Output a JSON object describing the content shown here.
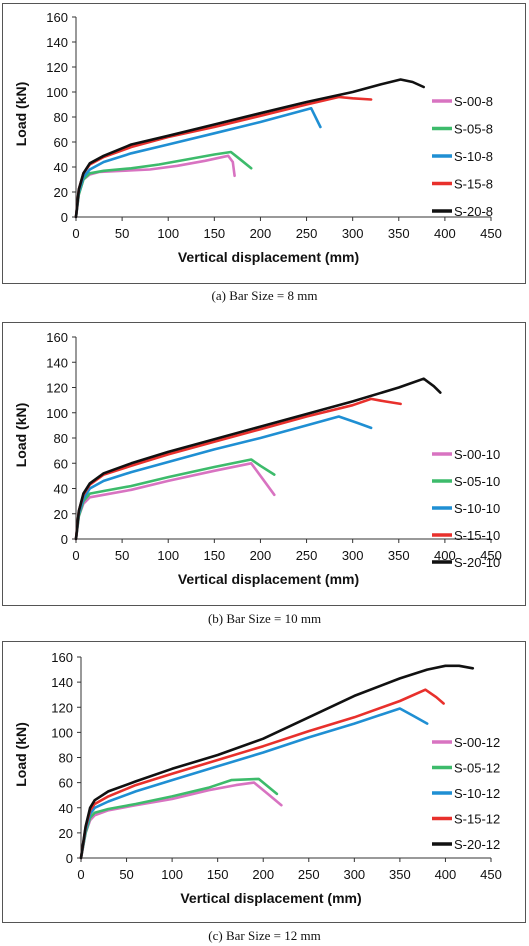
{
  "chart_data": [
    {
      "type": "line",
      "caption": "(a)  Bar Size  = 8 mm",
      "xlabel": "Vertical displacement (mm)",
      "ylabel": "Load (kN)",
      "xlim": [
        0,
        450
      ],
      "ylim": [
        0,
        160
      ],
      "xticks": [
        0,
        50,
        100,
        150,
        200,
        250,
        300,
        350,
        400,
        450
      ],
      "yticks": [
        0,
        20,
        40,
        60,
        80,
        100,
        120,
        140,
        160
      ],
      "grid": false,
      "legend": "right",
      "series": [
        {
          "name": "S-00-8",
          "color": "#d873c1",
          "points": [
            [
              0,
              0
            ],
            [
              3,
              18
            ],
            [
              8,
              30
            ],
            [
              15,
              34
            ],
            [
              25,
              36
            ],
            [
              50,
              37
            ],
            [
              80,
              38
            ],
            [
              110,
              41
            ],
            [
              140,
              45
            ],
            [
              165,
              49
            ],
            [
              170,
              44
            ],
            [
              172,
              33
            ]
          ]
        },
        {
          "name": "S-05-8",
          "color": "#3dbb6b",
          "points": [
            [
              0,
              0
            ],
            [
              3,
              18
            ],
            [
              8,
              30
            ],
            [
              15,
              35
            ],
            [
              30,
              37
            ],
            [
              60,
              39
            ],
            [
              90,
              42
            ],
            [
              120,
              46
            ],
            [
              150,
              50
            ],
            [
              168,
              52
            ],
            [
              180,
              45
            ],
            [
              190,
              39
            ]
          ]
        },
        {
          "name": "S-10-8",
          "color": "#1f8fd3",
          "points": [
            [
              0,
              0
            ],
            [
              3,
              20
            ],
            [
              8,
              32
            ],
            [
              15,
              38
            ],
            [
              30,
              44
            ],
            [
              60,
              51
            ],
            [
              100,
              58
            ],
            [
              150,
              67
            ],
            [
              200,
              76
            ],
            [
              250,
              86
            ],
            [
              255,
              87
            ],
            [
              265,
              72
            ]
          ]
        },
        {
          "name": "S-15-8",
          "color": "#e8302c",
          "points": [
            [
              0,
              0
            ],
            [
              3,
              22
            ],
            [
              8,
              35
            ],
            [
              15,
              42
            ],
            [
              30,
              48
            ],
            [
              60,
              56
            ],
            [
              100,
              64
            ],
            [
              150,
              72
            ],
            [
              200,
              81
            ],
            [
              250,
              90
            ],
            [
              285,
              96
            ],
            [
              300,
              95
            ],
            [
              320,
              94
            ]
          ]
        },
        {
          "name": "S-20-8",
          "color": "#111111",
          "points": [
            [
              0,
              0
            ],
            [
              3,
              22
            ],
            [
              8,
              35
            ],
            [
              15,
              43
            ],
            [
              30,
              49
            ],
            [
              60,
              58
            ],
            [
              100,
              65
            ],
            [
              150,
              74
            ],
            [
              200,
              83
            ],
            [
              250,
              92
            ],
            [
              300,
              100
            ],
            [
              330,
              106
            ],
            [
              352,
              110
            ],
            [
              365,
              108
            ],
            [
              377,
              104
            ]
          ]
        }
      ]
    },
    {
      "type": "line",
      "caption": "(b)  Bar Size  = 10 mm",
      "xlabel": "Vertical displacement (mm)",
      "ylabel": "Load (kN)",
      "xlim": [
        0,
        450
      ],
      "ylim": [
        0,
        160
      ],
      "xticks": [
        0,
        50,
        100,
        150,
        200,
        250,
        300,
        350,
        400,
        450
      ],
      "yticks": [
        0,
        20,
        40,
        60,
        80,
        100,
        120,
        140,
        160
      ],
      "grid": false,
      "legend": "right",
      "series": [
        {
          "name": "S-00-10",
          "color": "#d873c1",
          "points": [
            [
              0,
              0
            ],
            [
              3,
              18
            ],
            [
              8,
              28
            ],
            [
              15,
              33
            ],
            [
              30,
              35
            ],
            [
              60,
              39
            ],
            [
              100,
              46
            ],
            [
              150,
              54
            ],
            [
              190,
              60
            ],
            [
              205,
              45
            ],
            [
              215,
              35
            ]
          ]
        },
        {
          "name": "S-05-10",
          "color": "#3dbb6b",
          "points": [
            [
              0,
              0
            ],
            [
              3,
              18
            ],
            [
              8,
              30
            ],
            [
              15,
              36
            ],
            [
              30,
              38
            ],
            [
              60,
              42
            ],
            [
              100,
              49
            ],
            [
              150,
              57
            ],
            [
              190,
              63
            ],
            [
              200,
              58
            ],
            [
              215,
              51
            ]
          ]
        },
        {
          "name": "S-10-10",
          "color": "#1f8fd3",
          "points": [
            [
              0,
              0
            ],
            [
              3,
              20
            ],
            [
              8,
              32
            ],
            [
              15,
              40
            ],
            [
              30,
              46
            ],
            [
              60,
              53
            ],
            [
              100,
              61
            ],
            [
              150,
              71
            ],
            [
              200,
              80
            ],
            [
              250,
              90
            ],
            [
              285,
              97
            ],
            [
              305,
              92
            ],
            [
              320,
              88
            ]
          ]
        },
        {
          "name": "S-15-10",
          "color": "#e8302c",
          "points": [
            [
              0,
              0
            ],
            [
              3,
              22
            ],
            [
              8,
              35
            ],
            [
              15,
              43
            ],
            [
              30,
              51
            ],
            [
              60,
              58
            ],
            [
              100,
              67
            ],
            [
              150,
              77
            ],
            [
              200,
              87
            ],
            [
              250,
              97
            ],
            [
              300,
              106
            ],
            [
              320,
              111
            ],
            [
              335,
              109
            ],
            [
              352,
              107
            ]
          ]
        },
        {
          "name": "S-20-10",
          "color": "#111111",
          "points": [
            [
              0,
              0
            ],
            [
              3,
              22
            ],
            [
              8,
              36
            ],
            [
              15,
              44
            ],
            [
              30,
              52
            ],
            [
              60,
              60
            ],
            [
              100,
              69
            ],
            [
              150,
              79
            ],
            [
              200,
              89
            ],
            [
              250,
              99
            ],
            [
              300,
              109
            ],
            [
              350,
              120
            ],
            [
              377,
              127
            ],
            [
              388,
              121
            ],
            [
              395,
              116
            ]
          ]
        }
      ]
    },
    {
      "type": "line",
      "caption": "(c)  Bar Size  = 12 mm",
      "xlabel": "Vertical displacement (mm)",
      "ylabel": "Load (kN)",
      "xlim": [
        0,
        450
      ],
      "ylim": [
        0,
        160
      ],
      "xticks": [
        0,
        50,
        100,
        150,
        200,
        250,
        300,
        350,
        400,
        450
      ],
      "yticks": [
        0,
        20,
        40,
        60,
        80,
        100,
        120,
        140,
        160
      ],
      "grid": false,
      "legend": "right",
      "series": [
        {
          "name": "S-00-12",
          "color": "#d873c1",
          "points": [
            [
              0,
              0
            ],
            [
              5,
              20
            ],
            [
              10,
              30
            ],
            [
              15,
              34
            ],
            [
              30,
              38
            ],
            [
              60,
              42
            ],
            [
              100,
              47
            ],
            [
              140,
              54
            ],
            [
              170,
              58
            ],
            [
              190,
              60
            ],
            [
              205,
              51
            ],
            [
              220,
              42
            ]
          ]
        },
        {
          "name": "S-05-12",
          "color": "#3dbb6b",
          "points": [
            [
              0,
              0
            ],
            [
              5,
              20
            ],
            [
              10,
              32
            ],
            [
              15,
              36
            ],
            [
              30,
              39
            ],
            [
              60,
              43
            ],
            [
              100,
              49
            ],
            [
              140,
              56
            ],
            [
              165,
              62
            ],
            [
              195,
              63
            ],
            [
              205,
              57
            ],
            [
              215,
              51
            ]
          ]
        },
        {
          "name": "S-10-12",
          "color": "#1f8fd3",
          "points": [
            [
              0,
              0
            ],
            [
              5,
              22
            ],
            [
              10,
              35
            ],
            [
              15,
              40
            ],
            [
              30,
              45
            ],
            [
              60,
              53
            ],
            [
              100,
              62
            ],
            [
              150,
              73
            ],
            [
              200,
              84
            ],
            [
              250,
              96
            ],
            [
              300,
              107
            ],
            [
              350,
              119
            ],
            [
              365,
              113
            ],
            [
              380,
              107
            ]
          ]
        },
        {
          "name": "S-15-12",
          "color": "#e8302c",
          "points": [
            [
              0,
              0
            ],
            [
              5,
              24
            ],
            [
              10,
              38
            ],
            [
              15,
              43
            ],
            [
              30,
              49
            ],
            [
              60,
              58
            ],
            [
              100,
              67
            ],
            [
              150,
              78
            ],
            [
              200,
              89
            ],
            [
              250,
              101
            ],
            [
              300,
              112
            ],
            [
              350,
              125
            ],
            [
              378,
              134
            ],
            [
              390,
              128
            ],
            [
              398,
              123
            ]
          ]
        },
        {
          "name": "S-20-12",
          "color": "#111111",
          "points": [
            [
              0,
              0
            ],
            [
              5,
              25
            ],
            [
              10,
              40
            ],
            [
              15,
              46
            ],
            [
              30,
              53
            ],
            [
              60,
              61
            ],
            [
              100,
              71
            ],
            [
              150,
              82
            ],
            [
              200,
              95
            ],
            [
              250,
              112
            ],
            [
              300,
              129
            ],
            [
              350,
              143
            ],
            [
              380,
              150
            ],
            [
              400,
              153
            ],
            [
              415,
              153
            ],
            [
              430,
              151
            ]
          ]
        }
      ]
    }
  ]
}
